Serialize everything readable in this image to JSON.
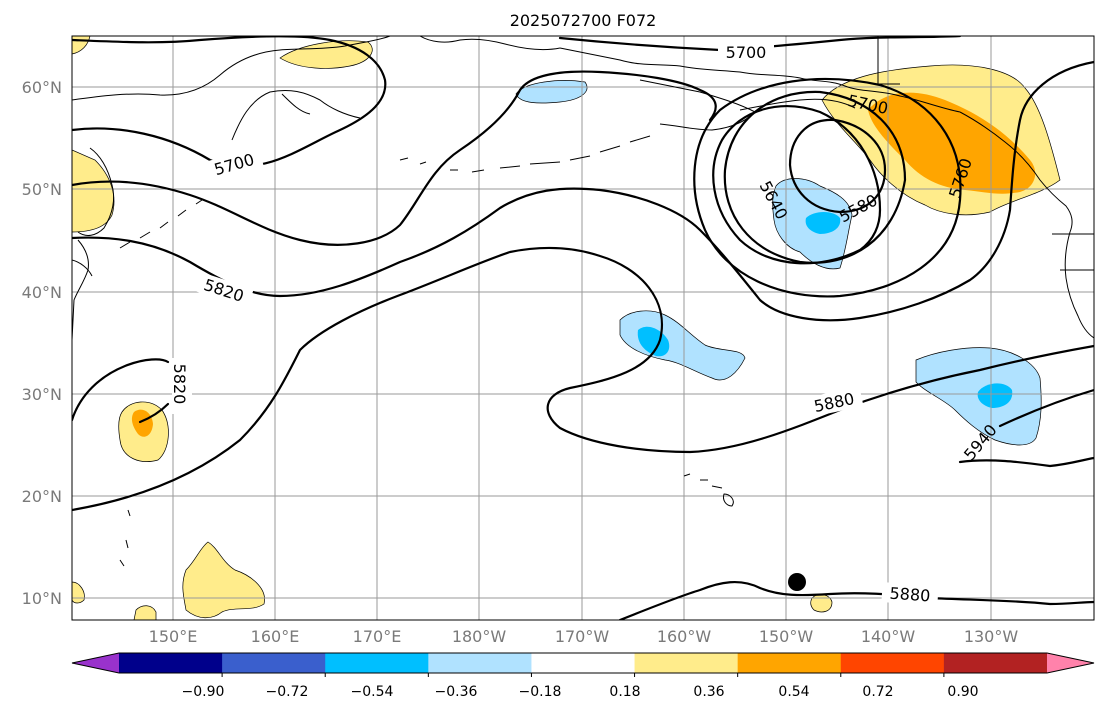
{
  "title": "2025072700 F072",
  "map": {
    "lon_ticks": [
      "150°E",
      "160°E",
      "170°E",
      "180°W",
      "170°W",
      "160°W",
      "150°W",
      "140°W",
      "130°W"
    ],
    "lat_ticks": [
      "10°N",
      "20°N",
      "30°N",
      "40°N",
      "50°N",
      "60°N"
    ],
    "contour_labels": [
      "5700",
      "5700",
      "5700",
      "5580",
      "5640",
      "5760",
      "5820",
      "5820",
      "5880",
      "5880",
      "5940"
    ],
    "marker": "black-dot"
  },
  "colorbar": {
    "ticks": [
      "−0.90",
      "−0.72",
      "−0.54",
      "−0.36",
      "−0.18",
      "0.18",
      "0.36",
      "0.54",
      "0.72",
      "0.90"
    ],
    "colors": [
      "#9932cc",
      "#00008b",
      "#3a5fcd",
      "#00bfff",
      "#b0e2ff",
      "#ffffff",
      "#ffec8b",
      "#ffa500",
      "#ff4500",
      "#b22222",
      "#ff82ab"
    ]
  }
}
